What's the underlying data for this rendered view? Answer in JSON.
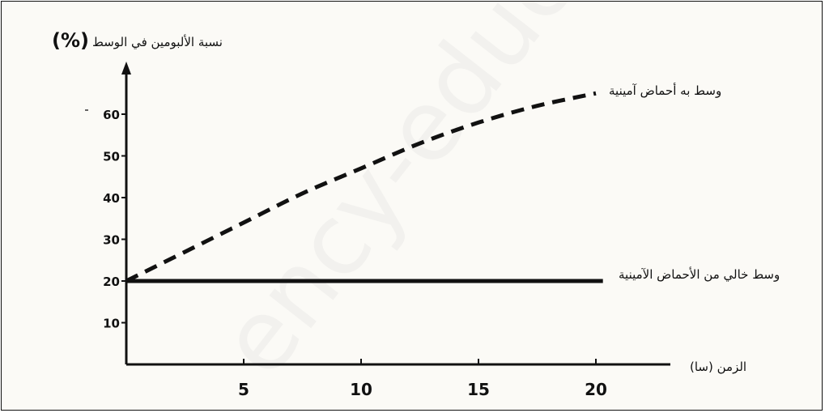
{
  "watermark": "ency-educati",
  "chart_data": {
    "type": "line",
    "ylabel": "نسبة الألبومين في الوسط",
    "ylabel_unit": "(%)",
    "xlabel": "الزمن (سا)",
    "x_ticks": [
      5,
      10,
      15,
      20
    ],
    "y_ticks": [
      10,
      20,
      30,
      40,
      50,
      60
    ],
    "xlim": [
      0,
      23
    ],
    "ylim": [
      0,
      72
    ],
    "series": [
      {
        "name": "وسط به أحماض آمينية",
        "style": "dashed",
        "color": "#111111",
        "x": [
          0,
          2.5,
          5,
          7.5,
          10,
          12.5,
          15,
          17.5,
          20
        ],
        "y": [
          20,
          27,
          34,
          41,
          47,
          53,
          58,
          62,
          65
        ]
      },
      {
        "name": "وسط خالي من الأحماض الآمينية",
        "style": "solid",
        "color": "#111111",
        "x": [
          0,
          20.3
        ],
        "y": [
          20,
          20
        ]
      }
    ]
  }
}
